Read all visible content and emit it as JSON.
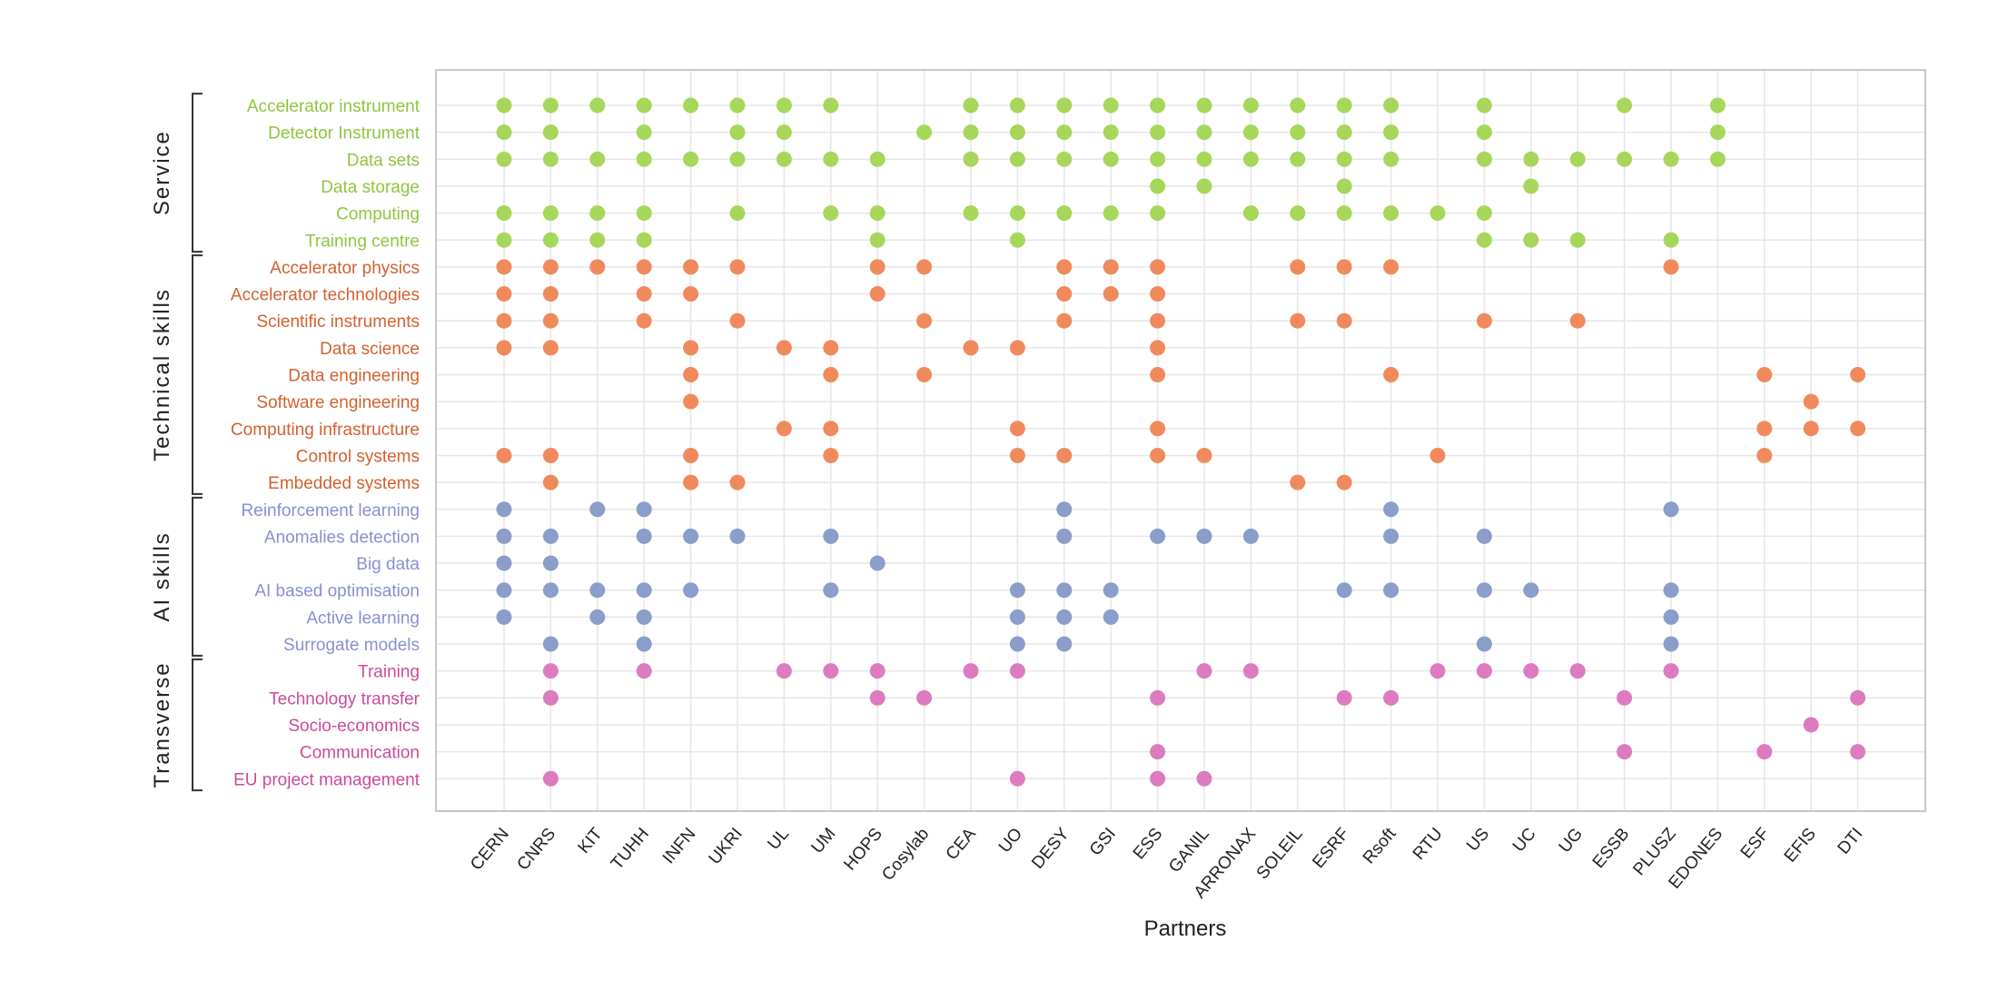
{
  "chart_data": {
    "type": "scatter",
    "xlabel": "Partners",
    "partners": [
      "CERN",
      "CNRS",
      "KIT",
      "TUHH",
      "INFN",
      "UKRI",
      "UL",
      "UM",
      "HOPS",
      "Cosylab",
      "CEA",
      "UO",
      "DESY",
      "GSI",
      "ESS",
      "GANIL",
      "ARRONAX",
      "SOLEIL",
      "ESRF",
      "Rsoft",
      "RTU",
      "US",
      "UC",
      "UG",
      "ESSB",
      "PLUSZ",
      "EDONES",
      "ESF",
      "EFIS",
      "DTI"
    ],
    "grid": true,
    "groups": [
      {
        "name": "Service",
        "color": "#8dc63f",
        "marker_color": "#a6d75b",
        "rows": [
          {
            "label": "Accelerator instrument",
            "partners": [
              "CERN",
              "CNRS",
              "KIT",
              "TUHH",
              "INFN",
              "UKRI",
              "UL",
              "UM",
              "CEA",
              "UO",
              "DESY",
              "GSI",
              "ESS",
              "GANIL",
              "ARRONAX",
              "SOLEIL",
              "ESRF",
              "Rsoft",
              "US",
              "ESSB",
              "EDONES"
            ]
          },
          {
            "label": "Detector Instrument",
            "partners": [
              "CERN",
              "CNRS",
              "TUHH",
              "UKRI",
              "UL",
              "Cosylab",
              "CEA",
              "UO",
              "DESY",
              "GSI",
              "ESS",
              "GANIL",
              "ARRONAX",
              "SOLEIL",
              "ESRF",
              "Rsoft",
              "US",
              "EDONES"
            ]
          },
          {
            "label": "Data sets",
            "partners": [
              "CERN",
              "CNRS",
              "KIT",
              "TUHH",
              "INFN",
              "UKRI",
              "UL",
              "UM",
              "HOPS",
              "CEA",
              "UO",
              "DESY",
              "GSI",
              "ESS",
              "GANIL",
              "ARRONAX",
              "SOLEIL",
              "ESRF",
              "Rsoft",
              "US",
              "UC",
              "UG",
              "ESSB",
              "PLUSZ",
              "EDONES"
            ]
          },
          {
            "label": "Data storage",
            "partners": [
              "ESS",
              "GANIL",
              "ESRF",
              "UC"
            ]
          },
          {
            "label": "Computing",
            "partners": [
              "CERN",
              "CNRS",
              "KIT",
              "TUHH",
              "UKRI",
              "UM",
              "HOPS",
              "CEA",
              "UO",
              "DESY",
              "GSI",
              "ESS",
              "ARRONAX",
              "SOLEIL",
              "ESRF",
              "Rsoft",
              "RTU",
              "US"
            ]
          },
          {
            "label": "Training centre",
            "partners": [
              "CERN",
              "CNRS",
              "KIT",
              "TUHH",
              "HOPS",
              "UO",
              "US",
              "UC",
              "UG",
              "PLUSZ"
            ]
          }
        ]
      },
      {
        "name": "Technical skills",
        "color": "#d2612f",
        "marker_color": "#f08a5d",
        "rows": [
          {
            "label": "Accelerator physics",
            "partners": [
              "CERN",
              "CNRS",
              "KIT",
              "TUHH",
              "INFN",
              "UKRI",
              "HOPS",
              "Cosylab",
              "DESY",
              "GSI",
              "ESS",
              "SOLEIL",
              "ESRF",
              "Rsoft",
              "PLUSZ"
            ]
          },
          {
            "label": "Accelerator technologies",
            "partners": [
              "CERN",
              "CNRS",
              "TUHH",
              "INFN",
              "HOPS",
              "DESY",
              "GSI",
              "ESS"
            ]
          },
          {
            "label": "Scientific instruments",
            "partners": [
              "CERN",
              "CNRS",
              "TUHH",
              "UKRI",
              "Cosylab",
              "DESY",
              "ESS",
              "SOLEIL",
              "ESRF",
              "US",
              "UG"
            ]
          },
          {
            "label": "Data science",
            "partners": [
              "CERN",
              "CNRS",
              "INFN",
              "UL",
              "UM",
              "CEA",
              "UO",
              "ESS"
            ]
          },
          {
            "label": "Data engineering",
            "partners": [
              "INFN",
              "UM",
              "Cosylab",
              "ESS",
              "Rsoft",
              "ESF",
              "DTI"
            ]
          },
          {
            "label": "Software engineering",
            "partners": [
              "INFN",
              "EFIS"
            ]
          },
          {
            "label": "Computing infrastructure",
            "partners": [
              "UL",
              "UM",
              "UO",
              "ESS",
              "ESF",
              "EFIS",
              "DTI"
            ]
          },
          {
            "label": "Control systems",
            "partners": [
              "CERN",
              "CNRS",
              "INFN",
              "UM",
              "UO",
              "DESY",
              "ESS",
              "GANIL",
              "RTU",
              "ESF"
            ]
          },
          {
            "label": "Embedded systems",
            "partners": [
              "CNRS",
              "INFN",
              "UKRI",
              "SOLEIL",
              "ESRF"
            ]
          }
        ]
      },
      {
        "name": "AI skills",
        "color": "#8a8fd0",
        "marker_color": "#8b9dca",
        "rows": [
          {
            "label": "Reinforcement learning",
            "partners": [
              "CERN",
              "KIT",
              "TUHH",
              "DESY",
              "Rsoft",
              "PLUSZ"
            ]
          },
          {
            "label": "Anomalies detection",
            "partners": [
              "CERN",
              "CNRS",
              "TUHH",
              "INFN",
              "UKRI",
              "UM",
              "DESY",
              "ESS",
              "GANIL",
              "ARRONAX",
              "Rsoft",
              "US"
            ]
          },
          {
            "label": "Big data",
            "partners": [
              "CERN",
              "CNRS",
              "HOPS"
            ]
          },
          {
            "label": "AI based optimisation",
            "partners": [
              "CERN",
              "CNRS",
              "KIT",
              "TUHH",
              "INFN",
              "UM",
              "UO",
              "DESY",
              "GSI",
              "ESRF",
              "Rsoft",
              "US",
              "UC",
              "PLUSZ"
            ]
          },
          {
            "label": "Active learning",
            "partners": [
              "CERN",
              "KIT",
              "TUHH",
              "UO",
              "DESY",
              "GSI",
              "PLUSZ"
            ]
          },
          {
            "label": "Surrogate models",
            "partners": [
              "CNRS",
              "TUHH",
              "UO",
              "DESY",
              "US",
              "PLUSZ"
            ]
          }
        ]
      },
      {
        "name": "Transverse",
        "color": "#cc4a9b",
        "marker_color": "#dc7bc0",
        "rows": [
          {
            "label": "Training",
            "partners": [
              "CNRS",
              "TUHH",
              "UL",
              "UM",
              "HOPS",
              "CEA",
              "UO",
              "GANIL",
              "ARRONAX",
              "RTU",
              "US",
              "UC",
              "UG",
              "PLUSZ"
            ]
          },
          {
            "label": "Technology transfer",
            "partners": [
              "CNRS",
              "HOPS",
              "Cosylab",
              "ESS",
              "ESRF",
              "Rsoft",
              "ESSB",
              "DTI"
            ]
          },
          {
            "label": "Socio-economics",
            "partners": [
              "EFIS"
            ]
          },
          {
            "label": "Communication",
            "partners": [
              "ESS",
              "ESSB",
              "ESF",
              "DTI"
            ]
          },
          {
            "label": "EU project management",
            "partners": [
              "CNRS",
              "UO",
              "ESS",
              "GANIL"
            ]
          }
        ]
      }
    ]
  }
}
